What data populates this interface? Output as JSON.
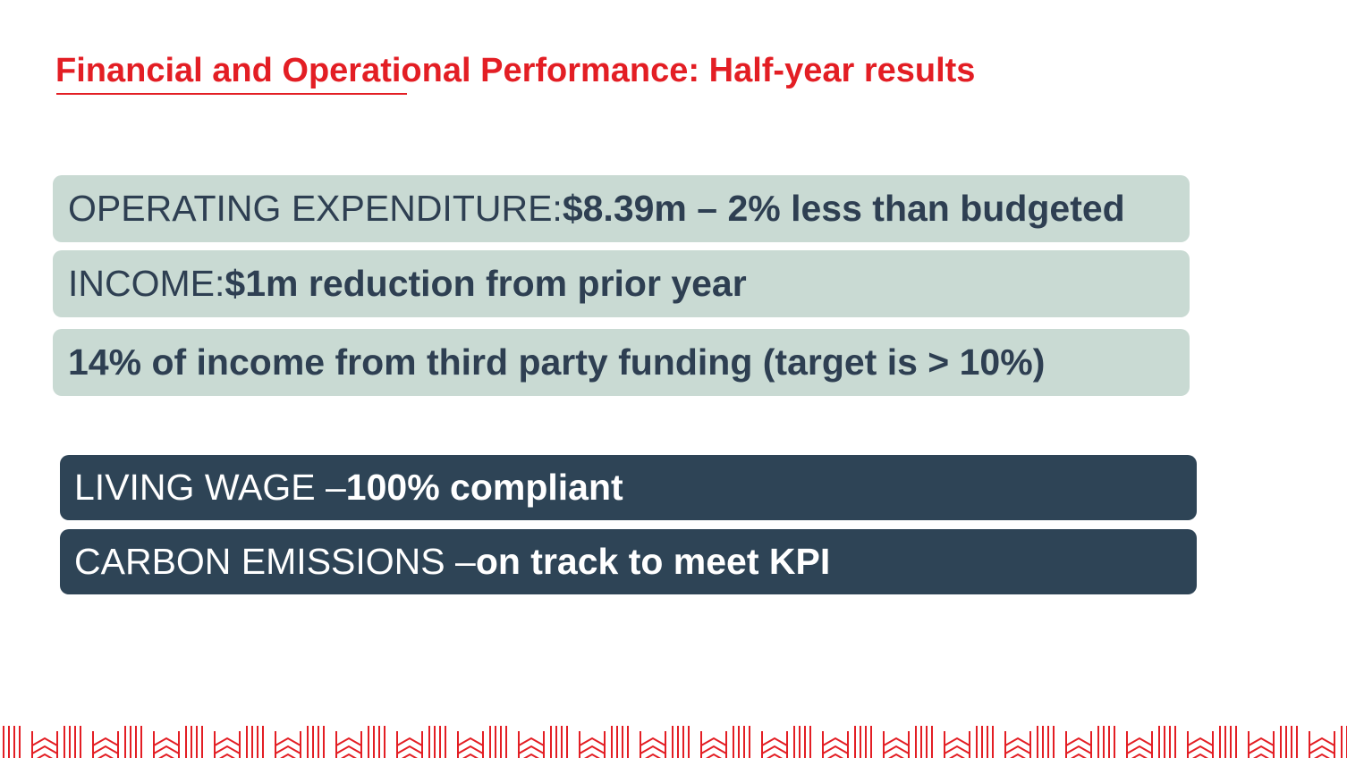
{
  "colors": {
    "accent": "#e31e24",
    "light_panel_bg": "#c9dad3",
    "light_panel_text": "#2e3f52",
    "dark_panel_bg": "#2e4456",
    "pattern": "#e31e24"
  },
  "title": "Financial and Operational Performance: Half-year results",
  "financial": [
    {
      "label": "OPERATING EXPENDITURE: ",
      "value": "$8.39m – 2% less than budgeted"
    },
    {
      "label": "INCOME: ",
      "value": "$1m reduction from prior year"
    },
    {
      "label": "",
      "value": "14% of income from third party funding (target is > 10%)"
    }
  ],
  "operational": [
    {
      "label": "LIVING WAGE – ",
      "value": "100% compliant"
    },
    {
      "label": "CARBON EMISSIONS – ",
      "value": "on track to meet KPI"
    }
  ],
  "footer": {
    "pattern_icon": "chevron-stripe-pattern"
  }
}
